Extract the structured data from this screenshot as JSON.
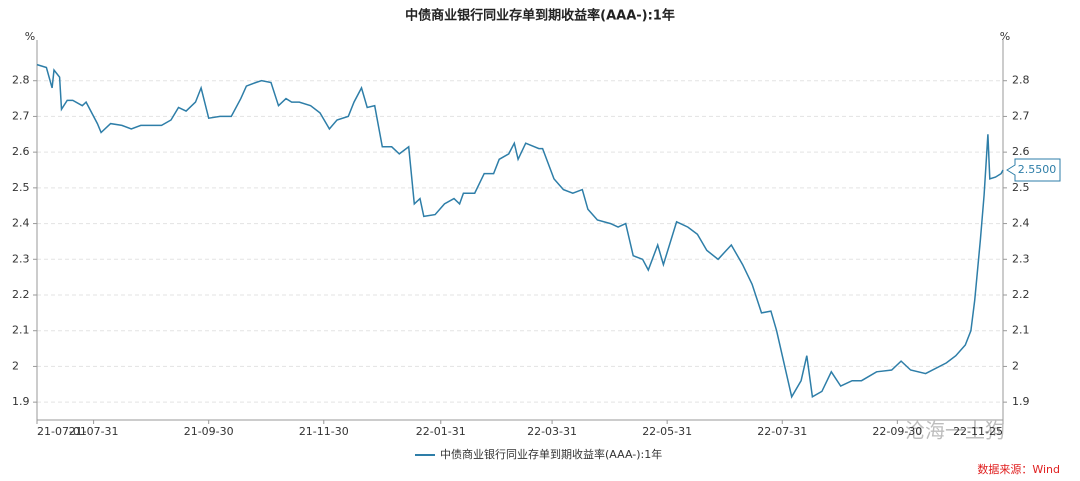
{
  "chart_data": {
    "type": "line",
    "title": "中债商业银行同业存单到期收益率(AAA-):1年",
    "ylabel": "%",
    "y2label": "%",
    "source": "数据来源：Wind",
    "watermark": "沧海一土狗",
    "annotation": {
      "text": "2.5500",
      "value": 2.55
    },
    "x": [
      "21-07-01",
      "21-07-06",
      "21-07-09",
      "21-07-10",
      "21-07-13",
      "21-07-14",
      "21-07-17",
      "21-07-20",
      "21-07-25",
      "21-07-27",
      "21-08-02",
      "21-08-04",
      "21-08-09",
      "21-08-15",
      "21-08-20",
      "21-08-25",
      "21-08-31",
      "21-09-05",
      "21-09-10",
      "21-09-14",
      "21-09-18",
      "21-09-23",
      "21-09-26",
      "21-09-30",
      "21-10-06",
      "21-10-12",
      "21-10-17",
      "21-10-20",
      "21-10-25",
      "21-10-28",
      "21-11-02",
      "21-11-06",
      "21-11-10",
      "21-11-13",
      "21-11-17",
      "21-11-23",
      "21-11-28",
      "21-12-03",
      "21-12-07",
      "21-12-13",
      "21-12-16",
      "21-12-20",
      "21-12-23",
      "21-12-27",
      "21-12-31",
      "22-01-05",
      "22-01-09",
      "22-01-14",
      "22-01-17",
      "22-01-20",
      "22-01-22",
      "22-01-28",
      "22-02-02",
      "22-02-07",
      "22-02-10",
      "22-02-12",
      "22-02-18",
      "22-02-23",
      "22-02-28",
      "22-03-03",
      "22-03-08",
      "22-03-11",
      "22-03-13",
      "22-03-17",
      "22-03-24",
      "22-03-26",
      "22-04-01",
      "22-04-06",
      "22-04-11",
      "22-04-16",
      "22-04-19",
      "22-04-24",
      "22-05-01",
      "22-05-05",
      "22-05-09",
      "22-05-13",
      "22-05-18",
      "22-05-21",
      "22-05-26",
      "22-05-29",
      "22-06-05",
      "22-06-11",
      "22-06-16",
      "22-06-21",
      "22-06-27",
      "22-07-04",
      "22-07-10",
      "22-07-15",
      "22-07-20",
      "22-07-25",
      "22-07-28",
      "22-07-31",
      "22-08-05",
      "22-08-10",
      "22-08-13",
      "22-08-16",
      "22-08-21",
      "22-08-26",
      "22-08-31",
      "22-09-06",
      "22-09-11",
      "22-09-19",
      "22-09-27",
      "22-10-02",
      "22-10-07",
      "22-10-15",
      "22-10-26",
      "22-10-31",
      "22-11-05",
      "22-11-08",
      "22-11-10",
      "22-11-13",
      "22-11-15",
      "22-11-17",
      "22-11-18",
      "22-11-21",
      "22-11-24",
      "22-11-25"
    ],
    "series": [
      {
        "name": "中债商业银行同业存单到期收益率(AAA-):1年",
        "color": "#2e7ea8",
        "values": [
          2.845,
          2.837,
          2.78,
          2.83,
          2.81,
          2.72,
          2.745,
          2.745,
          2.73,
          2.74,
          2.68,
          2.655,
          2.68,
          2.675,
          2.665,
          2.675,
          2.675,
          2.675,
          2.69,
          2.725,
          2.715,
          2.74,
          2.78,
          2.695,
          2.7,
          2.7,
          2.75,
          2.785,
          2.795,
          2.8,
          2.795,
          2.73,
          2.75,
          2.74,
          2.74,
          2.73,
          2.71,
          2.665,
          2.69,
          2.7,
          2.74,
          2.78,
          2.725,
          2.73,
          2.615,
          2.615,
          2.595,
          2.615,
          2.455,
          2.47,
          2.42,
          2.425,
          2.455,
          2.47,
          2.455,
          2.485,
          2.485,
          2.54,
          2.54,
          2.58,
          2.595,
          2.625,
          2.58,
          2.625,
          2.61,
          2.61,
          2.525,
          2.495,
          2.485,
          2.495,
          2.44,
          2.41,
          2.4,
          2.39,
          2.4,
          2.31,
          2.3,
          2.27,
          2.34,
          2.285,
          2.405,
          2.39,
          2.37,
          2.325,
          2.3,
          2.34,
          2.285,
          2.23,
          2.15,
          2.155,
          2.1,
          2.03,
          1.915,
          1.96,
          2.03,
          1.915,
          1.93,
          1.985,
          1.945,
          1.96,
          1.96,
          1.985,
          1.99,
          2.015,
          1.99,
          1.98,
          2.01,
          2.03,
          2.06,
          2.1,
          2.185,
          2.355,
          2.48,
          2.65,
          2.525,
          2.53,
          2.54,
          2.55
        ]
      }
    ],
    "ylim": [
      1.85,
      2.9
    ],
    "yticks": [
      1.9,
      2,
      2.1,
      2.2,
      2.3,
      2.4,
      2.5,
      2.6,
      2.7,
      2.8
    ],
    "y2lim": [
      1.85,
      2.9
    ],
    "y2ticks": [
      1.9,
      2,
      2.1,
      2.2,
      2.3,
      2.4,
      2.5,
      2.6,
      2.7,
      2.8
    ],
    "xticks": [
      "21-07-01",
      "21-07-31",
      "21-09-30",
      "21-11-30",
      "22-01-31",
      "22-03-31",
      "22-05-31",
      "22-07-31",
      "22-09-30",
      "22-11-25"
    ],
    "grid": true
  }
}
